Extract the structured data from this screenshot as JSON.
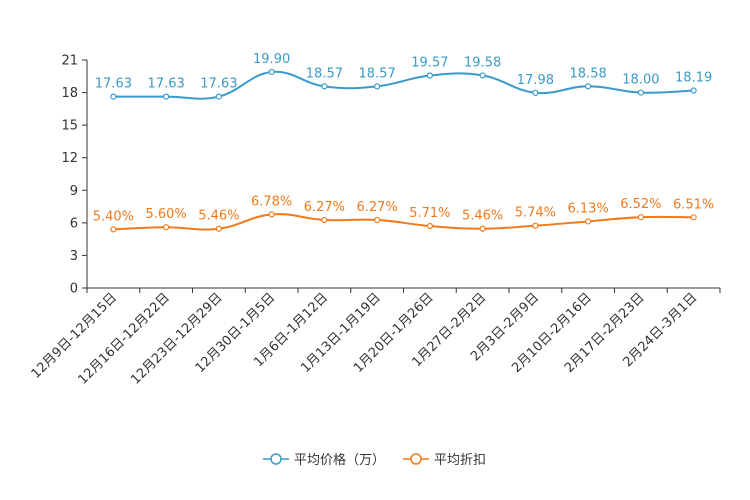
{
  "chart_data": {
    "type": "line",
    "categories": [
      "12月9日-12月15日",
      "12月16日-12月22日",
      "12月23日-12月29日",
      "12月30日-1月5日",
      "1月6日-1月12日",
      "1月13日-1月19日",
      "1月20日-1月26日",
      "1月27日-2月2日",
      "2月3日-2月9日",
      "2月10日-2月16日",
      "2月17日-2月23日",
      "2月24日-3月1日"
    ],
    "ylim": [
      0,
      21
    ],
    "yticks": [
      0,
      3,
      6,
      9,
      12,
      15,
      18,
      21
    ],
    "series": [
      {
        "name": "平均价格（万）",
        "color": "#3a9ac9",
        "values": [
          17.63,
          17.63,
          17.63,
          19.9,
          18.57,
          18.57,
          19.57,
          19.58,
          17.98,
          18.58,
          18.0,
          18.19
        ],
        "labels": [
          "17.63",
          "17.63",
          "17.63",
          "19.90",
          "18.57",
          "18.57",
          "19.57",
          "19.58",
          "17.98",
          "18.58",
          "18.00",
          "18.19"
        ]
      },
      {
        "name": "平均折扣",
        "color": "#f07a1c",
        "values": [
          5.4,
          5.6,
          5.46,
          6.78,
          6.27,
          6.27,
          5.71,
          5.46,
          5.74,
          6.13,
          6.52,
          6.51
        ],
        "labels": [
          "5.40%",
          "5.60%",
          "5.46%",
          "6.78%",
          "6.27%",
          "6.27%",
          "5.71%",
          "5.46%",
          "5.74%",
          "6.13%",
          "6.52%",
          "6.51%"
        ]
      }
    ],
    "legend_position": "bottom-center"
  }
}
